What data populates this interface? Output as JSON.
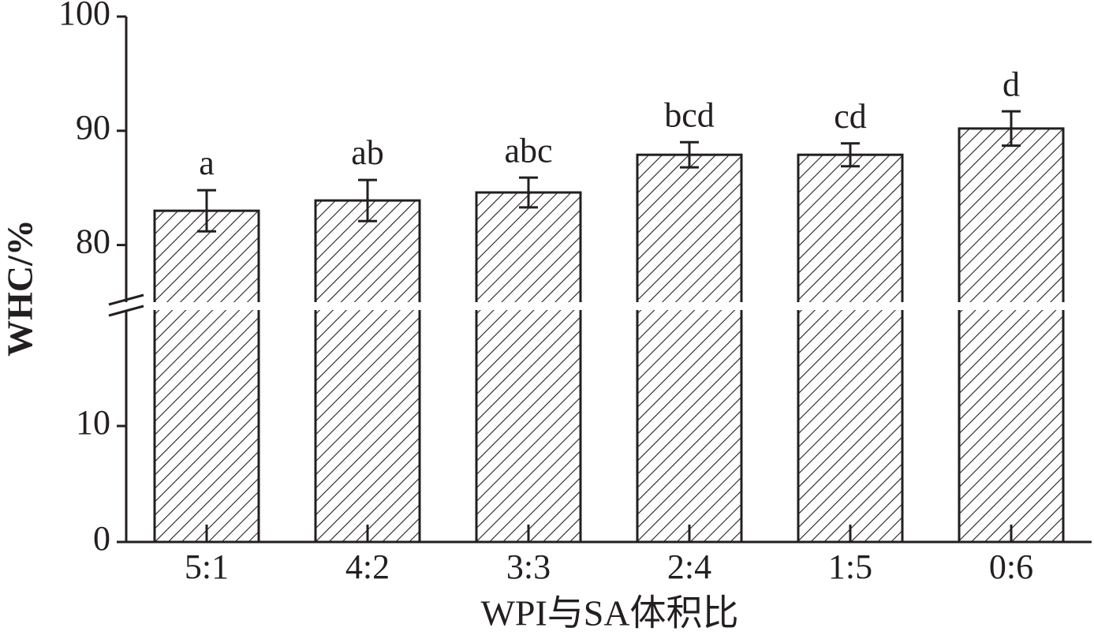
{
  "chart_data": {
    "type": "bar",
    "x_label": "WPI与SA体积比",
    "y_label": "WHC/%",
    "categories": [
      "5:1",
      "4:2",
      "3:3",
      "2:4",
      "1:5",
      "0:6"
    ],
    "values": [
      83.0,
      83.9,
      84.6,
      87.9,
      87.9,
      90.2
    ],
    "errors": [
      1.8,
      1.8,
      1.3,
      1.1,
      1.0,
      1.5
    ],
    "significance_labels": [
      "a",
      "ab",
      "abc",
      "bcd",
      "cd",
      "d"
    ],
    "color": "#231f20",
    "y_segments": [
      {
        "ylim": [
          0,
          20
        ],
        "yticks": [
          0,
          10
        ]
      },
      {
        "ylim": [
          75,
          100
        ],
        "yticks": [
          80,
          90,
          100
        ]
      }
    ]
  }
}
